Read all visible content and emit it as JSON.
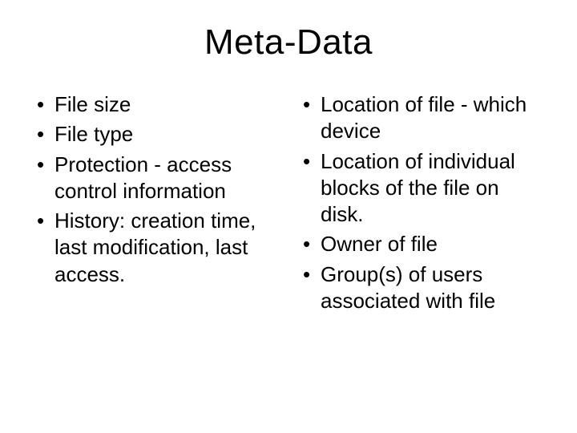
{
  "title": "Meta-Data",
  "left_column": {
    "items": [
      "File size",
      "File type",
      "Protection - access control information",
      "History: creation time, last modification, last access."
    ]
  },
  "right_column": {
    "items": [
      "Location of file - which device",
      "Location of individual blocks of the file on disk.",
      "Owner of file",
      "Group(s) of users associated with file"
    ]
  },
  "style": {
    "background_color": "#ffffff",
    "text_color": "#000000",
    "title_fontsize": 44,
    "body_fontsize": 26,
    "font_family": "Comic Sans MS"
  }
}
